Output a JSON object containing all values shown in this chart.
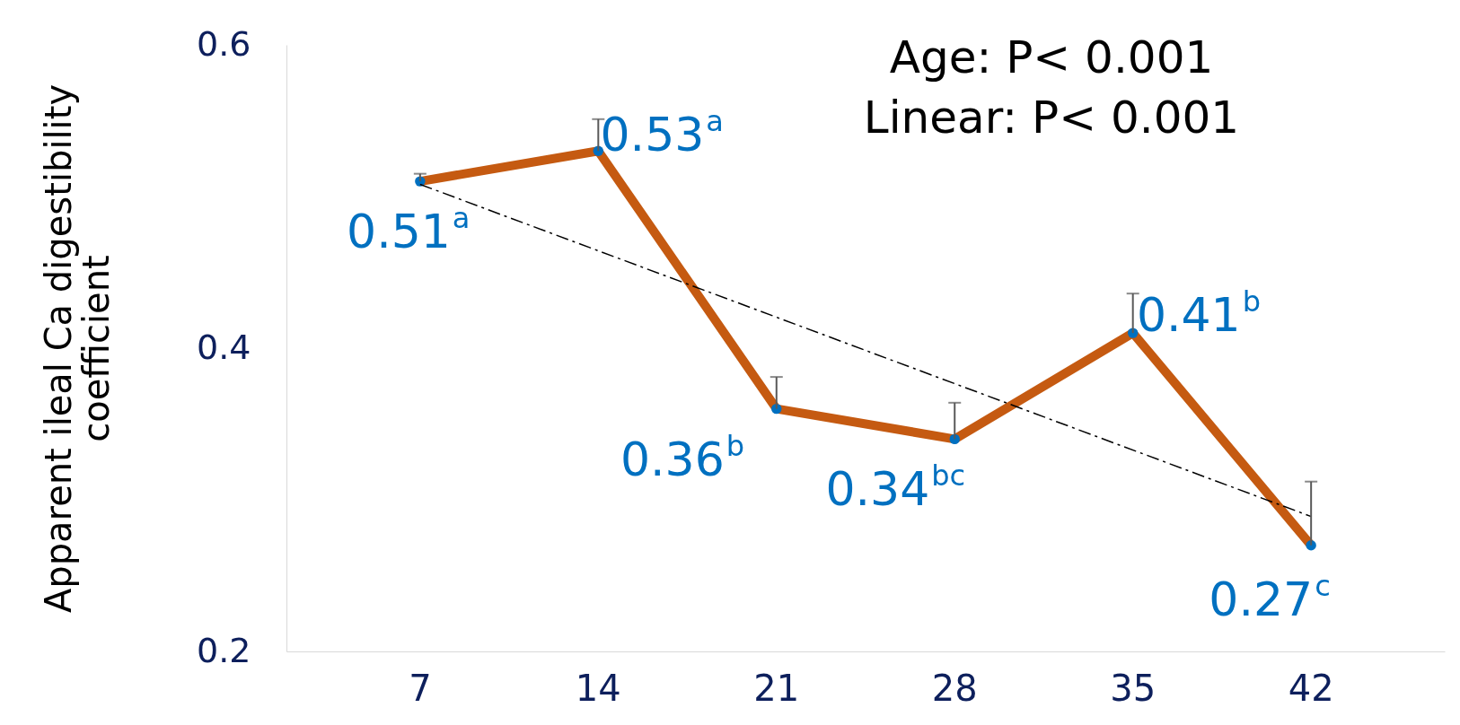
{
  "chart_data": {
    "type": "line",
    "ylabel": "Apparent ileal Ca digestibility coefficient",
    "categories": [
      "7",
      "14",
      "21",
      "28",
      "35",
      "42"
    ],
    "series": [
      {
        "color": "#c55a11",
        "marker": "none",
        "values": [
          0.51,
          0.53,
          0.36,
          0.34,
          0.41,
          0.27
        ]
      },
      {
        "type": "scatter",
        "color": "#0070c0",
        "marker": "circle",
        "values": [
          0.51,
          0.53,
          0.36,
          0.34,
          0.41,
          0.27
        ],
        "errors": [
          [
            0.51,
            0.515
          ],
          [
            0.53,
            0.551
          ],
          [
            0.36,
            0.381
          ],
          [
            0.34,
            0.364
          ],
          [
            0.41,
            0.436
          ],
          [
            0.27,
            0.312
          ]
        ],
        "value_labels": [
          "0.51$^{a}$",
          "0.53$^{a}$",
          "0.36$^{b}$",
          "0.34$^{bc}$",
          "0.41$^{b}$",
          "0.27$^{c}$"
        ]
      },
      {
        "color": "#000000",
        "line_style": "dashed",
        "marker": "none",
        "x": [
          "7",
          "42"
        ],
        "values": [
          0.508,
          0.289
        ]
      }
    ],
    "ylim": [
      0.2,
      0.6
    ],
    "yticks": [
      0.2,
      0.4,
      0.6
    ],
    "grid": false,
    "annotations": [
      "Age: P< 0.001",
      "Linear: P< 0.001"
    ]
  }
}
